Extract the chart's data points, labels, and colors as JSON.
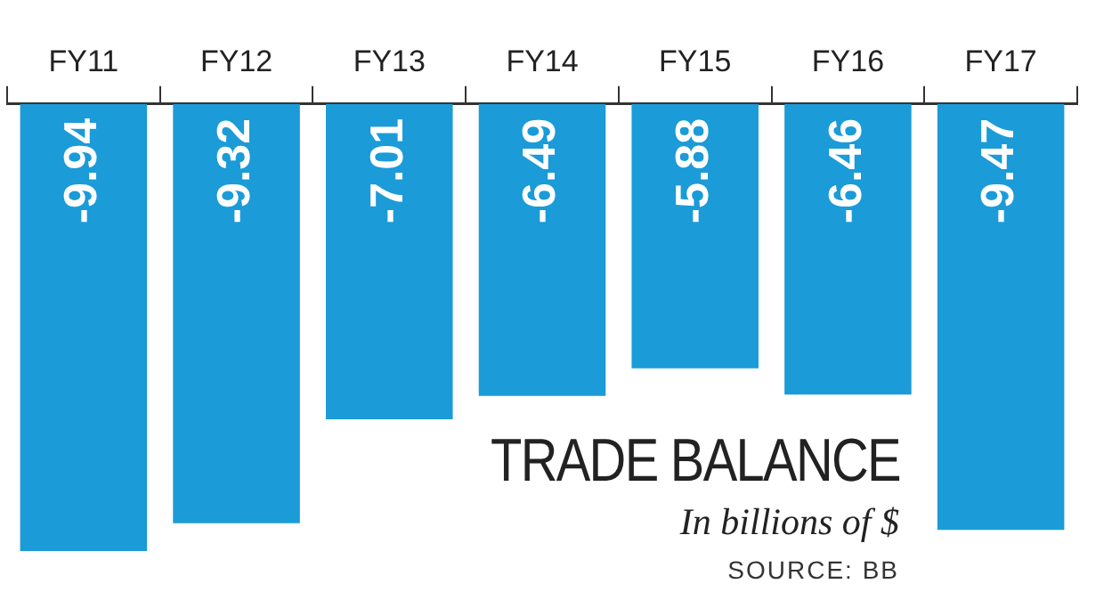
{
  "chart_data": {
    "type": "bar",
    "title": "TRADE BALANCE",
    "subtitle": "In billions of $",
    "categories": [
      "FY11",
      "FY12",
      "FY13",
      "FY14",
      "FY15",
      "FY16",
      "FY17"
    ],
    "values": [
      -9.94,
      -9.32,
      -7.01,
      -6.49,
      -5.88,
      -6.46,
      -9.47
    ],
    "color": "#1b9bd7",
    "data_labels": true,
    "grid": false,
    "legend": false,
    "annotations": [
      "SOURCE: BB"
    ]
  }
}
